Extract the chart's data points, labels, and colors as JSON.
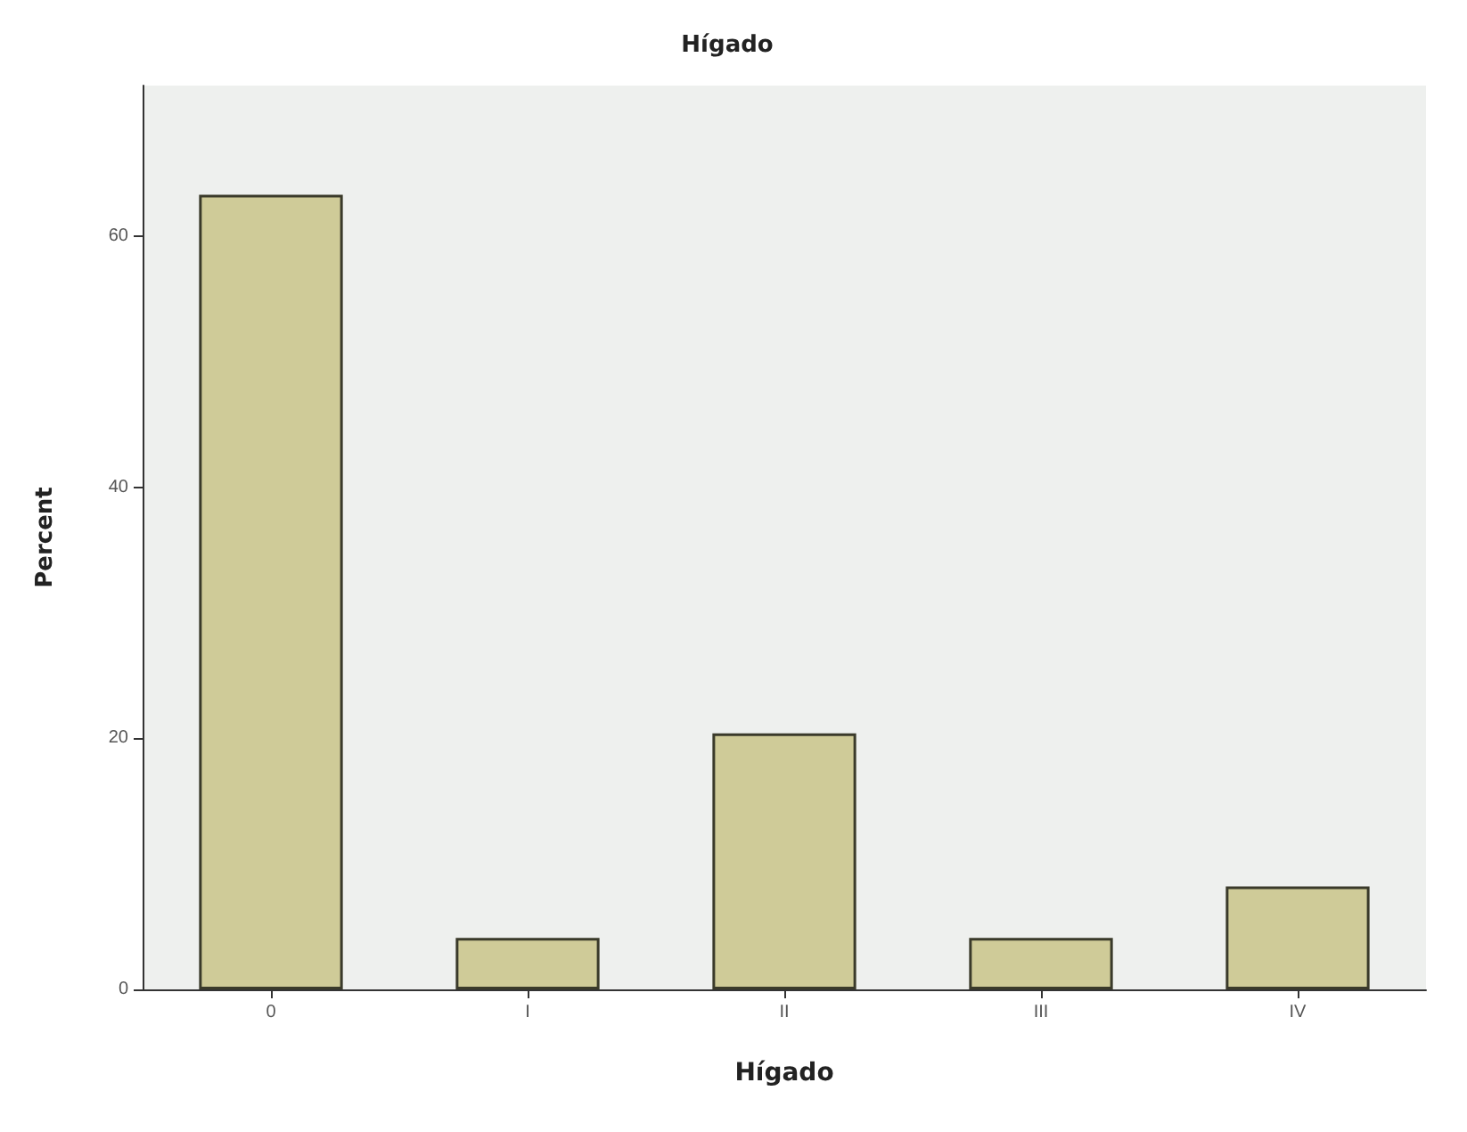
{
  "chart_data": {
    "type": "bar",
    "title": "Hígado",
    "xlabel": "Hígado",
    "ylabel": "Percent",
    "categories": [
      "0",
      "I",
      "II",
      "III",
      "IV"
    ],
    "values": [
      63.3,
      4.1,
      20.4,
      4.1,
      8.2
    ],
    "color": "#cfcb98",
    "ylim": [
      0,
      72
    ],
    "yticks": [
      0,
      20,
      40,
      60
    ]
  }
}
